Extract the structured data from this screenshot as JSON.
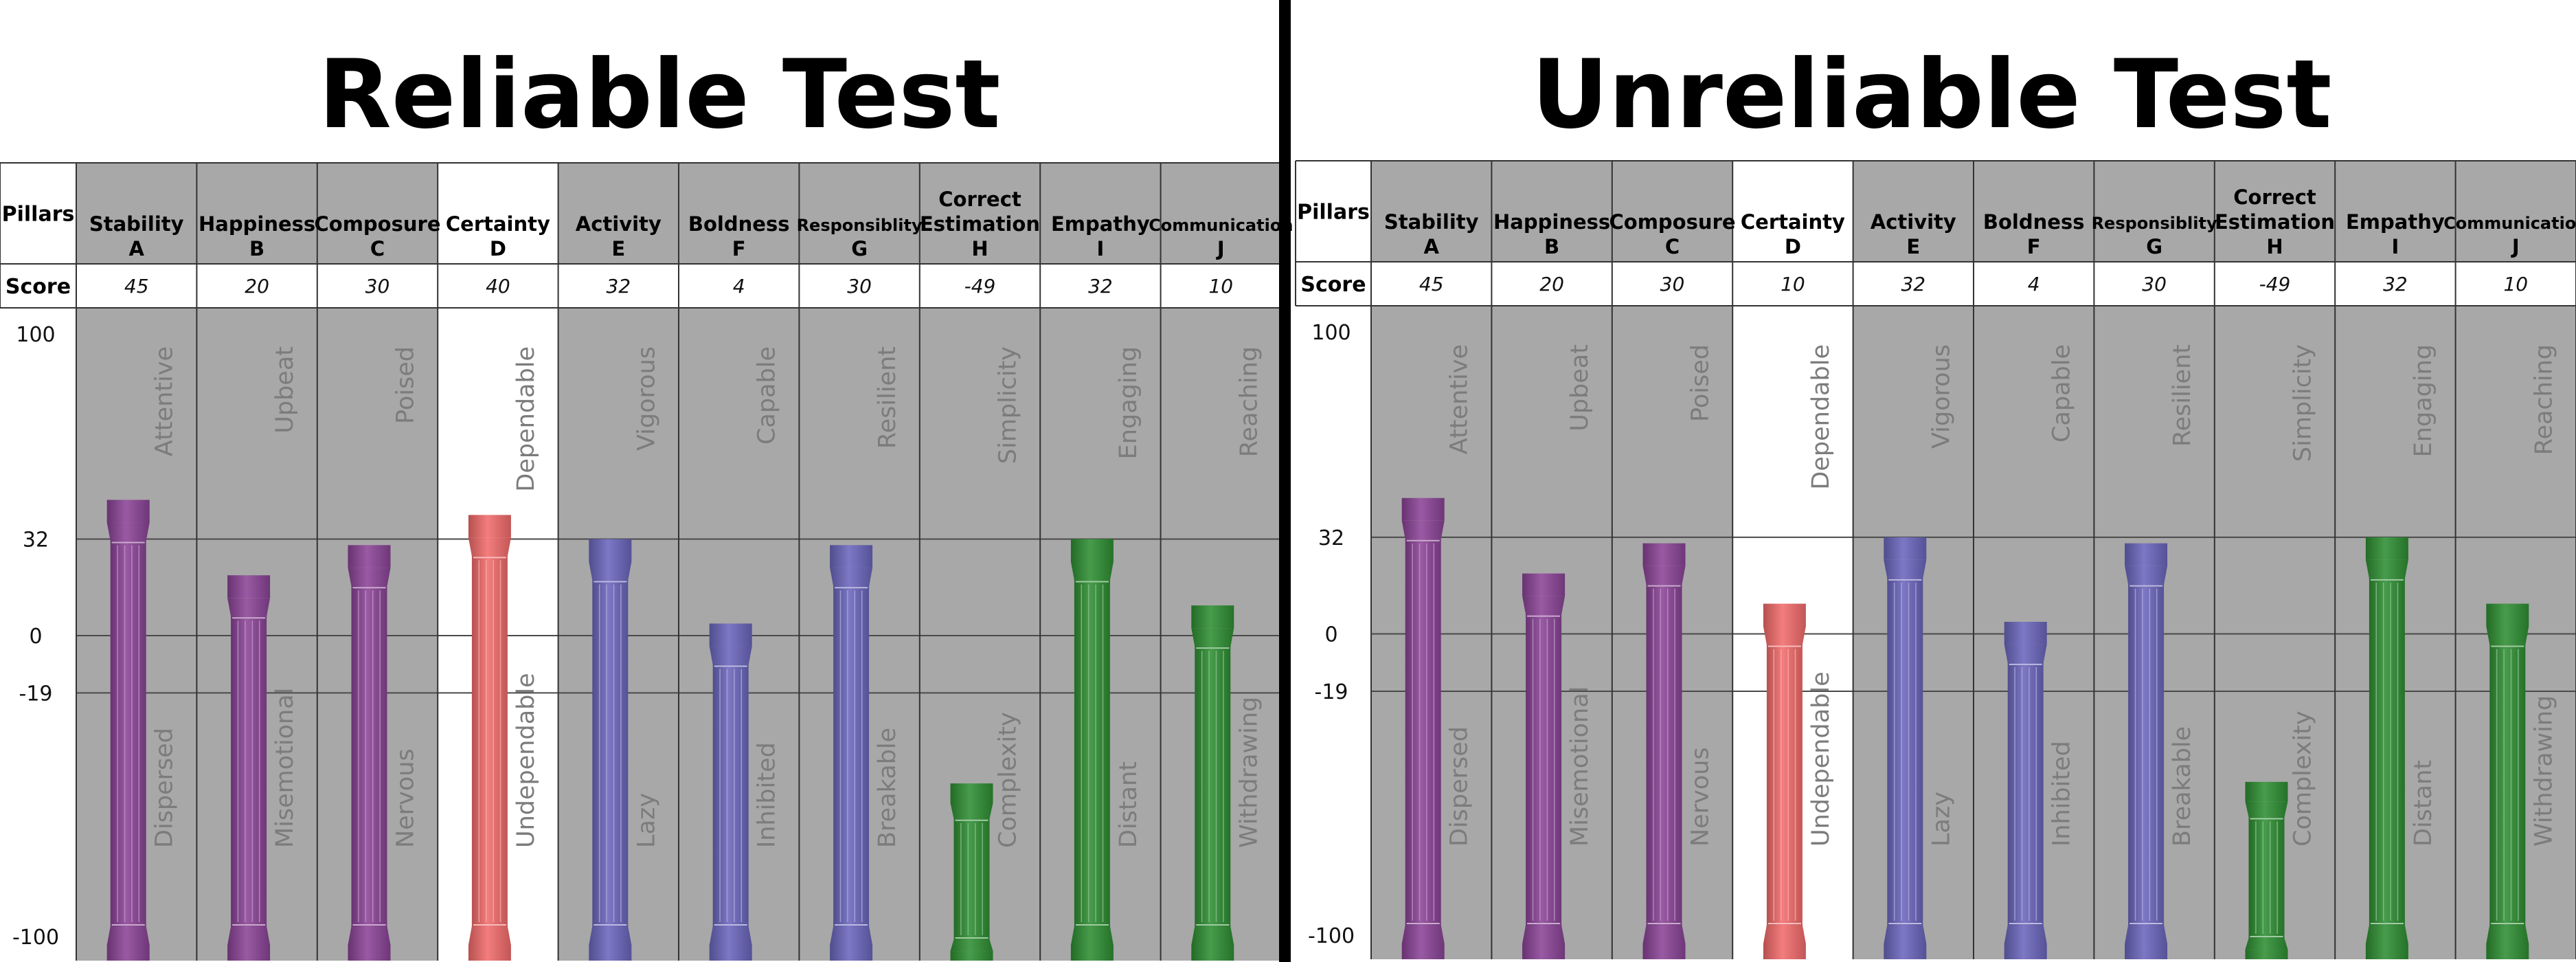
{
  "chart_data": [
    {
      "type": "bar",
      "title": "Reliable Test",
      "header_row_label": "Pillars",
      "score_row_label": "Score",
      "ylim": [
        -100,
        100
      ],
      "yticks": [
        100,
        32,
        0,
        -19,
        -100
      ],
      "categories": [
        {
          "name": "Stability",
          "letter": "A",
          "high": "Attentive",
          "low": "Dispersed",
          "color": "#8b4397"
        },
        {
          "name": "Happiness",
          "letter": "B",
          "high": "Upbeat",
          "low": "Misemotional",
          "color": "#8b4397"
        },
        {
          "name": "Composure",
          "letter": "C",
          "high": "Poised",
          "low": "Nervous",
          "color": "#8b4397"
        },
        {
          "name": "Certainty",
          "letter": "D",
          "high": "Dependable",
          "low": "Undependable",
          "color": "#f26b6b"
        },
        {
          "name": "Activity",
          "letter": "E",
          "high": "Vigorous",
          "low": "Lazy",
          "color": "#6a66bd"
        },
        {
          "name": "Boldness",
          "letter": "F",
          "high": "Capable",
          "low": "Inhibited",
          "color": "#6a66bd"
        },
        {
          "name": "Responsiblity",
          "letter": "G",
          "high": "Resilient",
          "low": "Breakable",
          "color": "#6a66bd"
        },
        {
          "name": "Correct Estimation",
          "letter": "H",
          "high": "Simplicity",
          "low": "Complexity",
          "color": "#2e8e33"
        },
        {
          "name": "Empathy",
          "letter": "I",
          "high": "Engaging",
          "low": "Distant",
          "color": "#2e8e33"
        },
        {
          "name": "Communication",
          "letter": "J",
          "high": "Reaching",
          "low": "Withdrawing",
          "color": "#2e8e33"
        }
      ],
      "values": [
        45,
        20,
        30,
        40,
        32,
        4,
        30,
        -49,
        32,
        10
      ],
      "highlight_category": "D"
    },
    {
      "type": "bar",
      "title": "Unreliable Test",
      "header_row_label": "Pillars",
      "score_row_label": "Score",
      "ylim": [
        -100,
        100
      ],
      "yticks": [
        100,
        32,
        0,
        -19,
        -100
      ],
      "categories": [
        {
          "name": "Stability",
          "letter": "A",
          "high": "Attentive",
          "low": "Dispersed",
          "color": "#8b4397"
        },
        {
          "name": "Happiness",
          "letter": "B",
          "high": "Upbeat",
          "low": "Misemotional",
          "color": "#8b4397"
        },
        {
          "name": "Composure",
          "letter": "C",
          "high": "Poised",
          "low": "Nervous",
          "color": "#8b4397"
        },
        {
          "name": "Certainty",
          "letter": "D",
          "high": "Dependable",
          "low": "Undependable",
          "color": "#f26b6b"
        },
        {
          "name": "Activity",
          "letter": "E",
          "high": "Vigorous",
          "low": "Lazy",
          "color": "#6a66bd"
        },
        {
          "name": "Boldness",
          "letter": "F",
          "high": "Capable",
          "low": "Inhibited",
          "color": "#6a66bd"
        },
        {
          "name": "Responsiblity",
          "letter": "G",
          "high": "Resilient",
          "low": "Breakable",
          "color": "#6a66bd"
        },
        {
          "name": "Correct Estimation",
          "letter": "H",
          "high": "Simplicity",
          "low": "Complexity",
          "color": "#2e8e33"
        },
        {
          "name": "Empathy",
          "letter": "I",
          "high": "Engaging",
          "low": "Distant",
          "color": "#2e8e33"
        },
        {
          "name": "Communication",
          "letter": "J",
          "high": "Reaching",
          "low": "Withdrawing",
          "color": "#2e8e33"
        }
      ],
      "values": [
        45,
        20,
        30,
        10,
        32,
        4,
        30,
        -49,
        32,
        10
      ],
      "highlight_category": "D"
    }
  ]
}
